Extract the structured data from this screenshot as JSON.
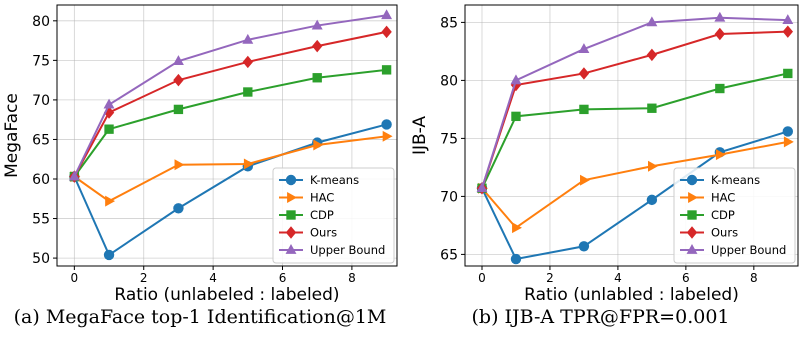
{
  "colors": {
    "kmeans": "#1f77b4",
    "hac": "#ff7f0e",
    "cdp": "#2ca02c",
    "ours": "#d62728",
    "upper": "#9467bd"
  },
  "captions": {
    "a": "(a) MegaFace top-1 Identification@1M",
    "b": "(b) IJB-A TPR@FPR=0.001"
  },
  "chart_data": [
    {
      "type": "line",
      "xlabel": "Ratio (unlabeled : labeled)",
      "ylabel": "MegaFace",
      "xlim": [
        -0.5,
        9.3
      ],
      "ylim": [
        49,
        82
      ],
      "xticks": [
        0,
        2,
        4,
        6,
        8
      ],
      "yticks": [
        50,
        55,
        60,
        65,
        70,
        75,
        80
      ],
      "grid": true,
      "legend_position": "bottom-right",
      "x": [
        0,
        1,
        3,
        5,
        7,
        9
      ],
      "series": [
        {
          "name": "K-means",
          "key": "kmeans",
          "marker": "circle",
          "values": [
            60.3,
            50.4,
            56.3,
            61.6,
            64.6,
            66.9
          ]
        },
        {
          "name": "HAC",
          "key": "hac",
          "marker": "tri-right",
          "values": [
            60.3,
            57.2,
            61.8,
            61.9,
            64.3,
            65.4
          ]
        },
        {
          "name": "CDP",
          "key": "cdp",
          "marker": "square",
          "values": [
            60.3,
            66.3,
            68.8,
            71.0,
            72.8,
            73.8
          ]
        },
        {
          "name": "Ours",
          "key": "ours",
          "marker": "diamond",
          "values": [
            60.3,
            68.4,
            72.5,
            74.8,
            76.8,
            78.6
          ]
        },
        {
          "name": "Upper Bound",
          "key": "upper",
          "marker": "tri-up",
          "values": [
            60.3,
            69.4,
            74.9,
            77.6,
            79.4,
            80.7
          ]
        }
      ]
    },
    {
      "type": "line",
      "xlabel": "Ratio (unlabled : labeled)",
      "ylabel": "IJB-A",
      "xlim": [
        -0.5,
        9.3
      ],
      "ylim": [
        64,
        86.5
      ],
      "xticks": [
        0,
        2,
        4,
        6,
        8
      ],
      "yticks": [
        65,
        70,
        75,
        80,
        85
      ],
      "grid": true,
      "legend_position": "bottom-right",
      "x": [
        0,
        1,
        3,
        5,
        7,
        9
      ],
      "series": [
        {
          "name": "K-means",
          "key": "kmeans",
          "marker": "circle",
          "values": [
            70.7,
            64.6,
            65.7,
            69.7,
            73.8,
            75.6
          ]
        },
        {
          "name": "HAC",
          "key": "hac",
          "marker": "tri-right",
          "values": [
            70.7,
            67.3,
            71.4,
            72.6,
            73.6,
            74.7
          ]
        },
        {
          "name": "CDP",
          "key": "cdp",
          "marker": "square",
          "values": [
            70.7,
            76.9,
            77.5,
            77.6,
            79.3,
            80.6
          ]
        },
        {
          "name": "Ours",
          "key": "ours",
          "marker": "diamond",
          "values": [
            70.7,
            79.6,
            80.6,
            82.2,
            84.0,
            84.2
          ]
        },
        {
          "name": "Upper Bound",
          "key": "upper",
          "marker": "tri-up",
          "values": [
            70.7,
            80.0,
            82.7,
            85.0,
            85.4,
            85.2
          ]
        }
      ]
    }
  ]
}
